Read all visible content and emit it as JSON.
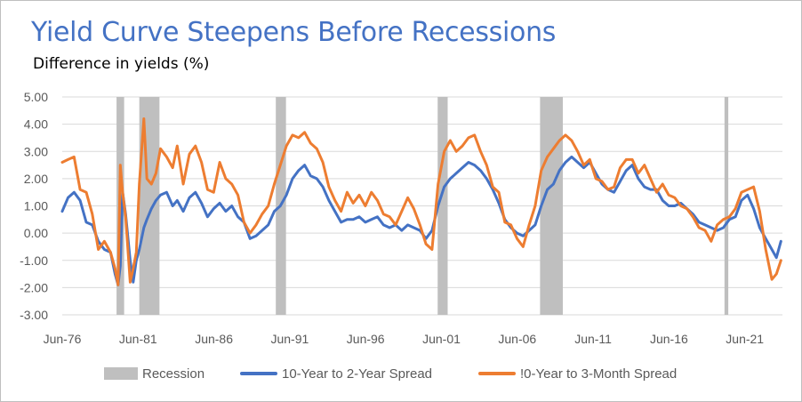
{
  "chart_data": {
    "type": "line",
    "title": "Yield Curve Steepens Before Recessions",
    "subtitle": "Difference in yields (%)",
    "xlabel": "",
    "ylabel": "",
    "x_tick_labels": [
      "Jun-76",
      "Jun-81",
      "Jun-86",
      "Jun-91",
      "Jun-96",
      "Jun-01",
      "Jun-06",
      "Jun-11",
      "Jun-16",
      "Jun-21"
    ],
    "y_tick_labels": [
      "5.00",
      "4.00",
      "3.00",
      "2.00",
      "1.00",
      "0.00",
      "-1.00",
      "-2.00",
      "-3.00"
    ],
    "ylim": [
      -3,
      5
    ],
    "xlim": [
      1976.42,
      2023.9
    ],
    "grid": "horizontal",
    "legend_position": "bottom",
    "recession": {
      "name": "Recession",
      "color": "#bfbfbf",
      "periods": [
        [
          1980.0,
          1980.5
        ],
        [
          1981.5,
          1982.83
        ],
        [
          1990.5,
          1991.17
        ],
        [
          2001.17,
          2001.83
        ],
        [
          2007.92,
          2009.42
        ],
        [
          2020.08,
          2020.33
        ]
      ]
    },
    "series": [
      {
        "name": "10-Year to 2-Year Spread",
        "color": "#4472c4",
        "x": [
          1976.42,
          1976.8,
          1977.2,
          1977.6,
          1978.0,
          1978.4,
          1978.8,
          1979.2,
          1979.6,
          1979.9,
          1980.1,
          1980.25,
          1980.4,
          1980.6,
          1980.9,
          1981.1,
          1981.3,
          1981.5,
          1981.8,
          1982.0,
          1982.3,
          1982.6,
          1982.9,
          1983.3,
          1983.7,
          1984.0,
          1984.4,
          1984.8,
          1985.2,
          1985.6,
          1986.0,
          1986.4,
          1986.8,
          1987.2,
          1987.6,
          1988.0,
          1988.4,
          1988.8,
          1989.2,
          1989.6,
          1990.0,
          1990.4,
          1990.8,
          1991.2,
          1991.6,
          1992.0,
          1992.4,
          1992.8,
          1993.2,
          1993.6,
          1994.0,
          1994.4,
          1994.8,
          1995.2,
          1995.6,
          1996.0,
          1996.4,
          1996.8,
          1997.2,
          1997.6,
          1998.0,
          1998.4,
          1998.8,
          1999.2,
          1999.6,
          2000.0,
          2000.4,
          2000.8,
          2001.2,
          2001.6,
          2002.0,
          2002.4,
          2002.8,
          2003.2,
          2003.6,
          2004.0,
          2004.4,
          2004.8,
          2005.2,
          2005.6,
          2006.0,
          2006.4,
          2006.8,
          2007.2,
          2007.6,
          2008.0,
          2008.4,
          2008.8,
          2009.2,
          2009.6,
          2010.0,
          2010.4,
          2010.8,
          2011.2,
          2011.6,
          2012.0,
          2012.4,
          2012.8,
          2013.2,
          2013.6,
          2014.0,
          2014.4,
          2014.8,
          2015.2,
          2015.6,
          2016.0,
          2016.4,
          2016.8,
          2017.2,
          2017.6,
          2018.0,
          2018.4,
          2018.8,
          2019.2,
          2019.6,
          2020.0,
          2020.4,
          2020.8,
          2021.2,
          2021.6,
          2022.0,
          2022.4,
          2022.8,
          2023.2,
          2023.5,
          2023.8
        ],
        "values": [
          0.8,
          1.3,
          1.5,
          1.2,
          0.4,
          0.3,
          -0.3,
          -0.6,
          -0.7,
          -1.5,
          -1.9,
          -1.2,
          1.5,
          0.7,
          -1.0,
          -1.8,
          -1.0,
          -0.6,
          0.2,
          0.5,
          0.9,
          1.2,
          1.4,
          1.5,
          1.0,
          1.2,
          0.8,
          1.3,
          1.5,
          1.1,
          0.6,
          0.9,
          1.1,
          0.8,
          1.0,
          0.6,
          0.4,
          -0.2,
          -0.1,
          0.1,
          0.3,
          0.8,
          1.0,
          1.4,
          2.0,
          2.3,
          2.5,
          2.1,
          2.0,
          1.7,
          1.2,
          0.8,
          0.4,
          0.5,
          0.5,
          0.6,
          0.4,
          0.5,
          0.6,
          0.3,
          0.2,
          0.3,
          0.1,
          0.3,
          0.2,
          0.1,
          -0.2,
          0.1,
          1.0,
          1.7,
          2.0,
          2.2,
          2.4,
          2.6,
          2.5,
          2.3,
          2.0,
          1.6,
          1.1,
          0.5,
          0.2,
          0.0,
          -0.1,
          0.1,
          0.3,
          1.0,
          1.6,
          1.8,
          2.3,
          2.6,
          2.8,
          2.6,
          2.4,
          2.6,
          2.2,
          1.8,
          1.6,
          1.5,
          1.9,
          2.3,
          2.5,
          2.0,
          1.7,
          1.6,
          1.6,
          1.2,
          1.0,
          1.0,
          1.1,
          0.9,
          0.7,
          0.4,
          0.3,
          0.2,
          0.1,
          0.2,
          0.5,
          0.6,
          1.2,
          1.4,
          0.9,
          0.2,
          -0.2,
          -0.6,
          -0.9,
          -0.3
        ]
      },
      {
        "name": "!0-Year to 3-Month Spread",
        "color": "#ed7d31",
        "x": [
          1976.42,
          1976.8,
          1977.2,
          1977.6,
          1978.0,
          1978.4,
          1978.8,
          1979.2,
          1979.6,
          1979.9,
          1980.1,
          1980.25,
          1980.4,
          1980.6,
          1980.9,
          1981.1,
          1981.3,
          1981.5,
          1981.8,
          1982.0,
          1982.3,
          1982.6,
          1982.9,
          1983.3,
          1983.7,
          1984.0,
          1984.4,
          1984.8,
          1985.2,
          1985.6,
          1986.0,
          1986.4,
          1986.8,
          1987.2,
          1987.6,
          1988.0,
          1988.4,
          1988.8,
          1989.2,
          1989.6,
          1990.0,
          1990.4,
          1990.8,
          1991.2,
          1991.6,
          1992.0,
          1992.4,
          1992.8,
          1993.2,
          1993.6,
          1994.0,
          1994.4,
          1994.8,
          1995.2,
          1995.6,
          1996.0,
          1996.4,
          1996.8,
          1997.2,
          1997.6,
          1998.0,
          1998.4,
          1998.8,
          1999.2,
          1999.6,
          2000.0,
          2000.4,
          2000.8,
          2001.2,
          2001.6,
          2002.0,
          2002.4,
          2002.8,
          2003.2,
          2003.6,
          2004.0,
          2004.4,
          2004.8,
          2005.2,
          2005.6,
          2006.0,
          2006.4,
          2006.8,
          2007.2,
          2007.6,
          2008.0,
          2008.4,
          2008.8,
          2009.2,
          2009.6,
          2010.0,
          2010.4,
          2010.8,
          2011.2,
          2011.6,
          2012.0,
          2012.4,
          2012.8,
          2013.2,
          2013.6,
          2014.0,
          2014.4,
          2014.8,
          2015.2,
          2015.6,
          2016.0,
          2016.4,
          2016.8,
          2017.2,
          2017.6,
          2018.0,
          2018.4,
          2018.8,
          2019.2,
          2019.6,
          2020.0,
          2020.4,
          2020.8,
          2021.2,
          2021.6,
          2022.0,
          2022.4,
          2022.8,
          2023.2,
          2023.5,
          2023.8
        ],
        "values": [
          2.6,
          2.7,
          2.8,
          1.6,
          1.5,
          0.7,
          -0.6,
          -0.3,
          -0.7,
          -1.3,
          -1.9,
          2.5,
          1.5,
          0.6,
          -1.8,
          -1.3,
          -0.7,
          1.8,
          4.2,
          2.0,
          1.8,
          2.2,
          3.1,
          2.8,
          2.4,
          3.2,
          1.8,
          2.9,
          3.2,
          2.6,
          1.6,
          1.5,
          2.6,
          2.0,
          1.8,
          1.4,
          0.4,
          0.0,
          0.3,
          0.7,
          1.0,
          1.8,
          2.5,
          3.2,
          3.6,
          3.5,
          3.7,
          3.3,
          3.1,
          2.6,
          1.7,
          1.2,
          0.8,
          1.5,
          1.1,
          1.4,
          1.0,
          1.5,
          1.2,
          0.7,
          0.6,
          0.3,
          0.8,
          1.3,
          0.9,
          0.3,
          -0.4,
          -0.6,
          1.8,
          3.0,
          3.4,
          3.0,
          3.2,
          3.5,
          3.6,
          3.0,
          2.5,
          1.7,
          1.5,
          0.4,
          0.3,
          -0.2,
          -0.5,
          0.3,
          1.0,
          2.3,
          2.8,
          3.1,
          3.4,
          3.6,
          3.4,
          3.0,
          2.5,
          2.7,
          2.0,
          1.9,
          1.6,
          1.7,
          2.4,
          2.7,
          2.7,
          2.2,
          2.5,
          2.0,
          1.5,
          1.8,
          1.4,
          1.3,
          1.0,
          0.9,
          0.6,
          0.2,
          0.1,
          -0.3,
          0.3,
          0.5,
          0.6,
          0.9,
          1.5,
          1.6,
          1.7,
          0.8,
          -0.6,
          -1.7,
          -1.5,
          -1.0
        ]
      }
    ]
  }
}
